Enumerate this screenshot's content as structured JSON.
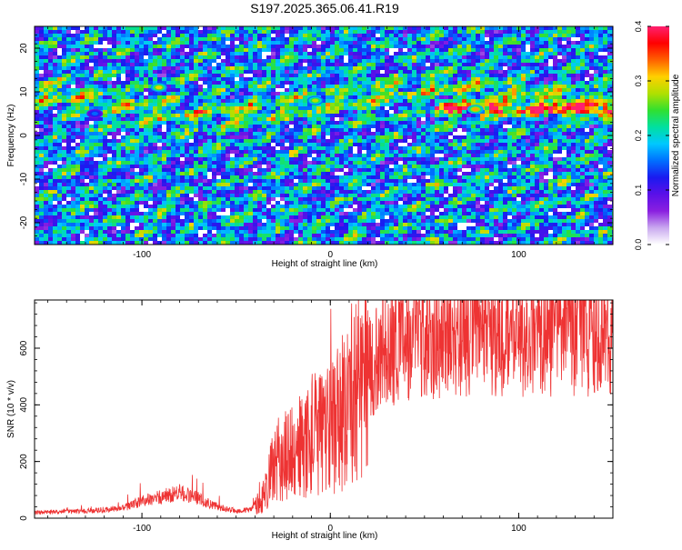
{
  "title": "S197.2025.365.06.41.R19",
  "chart_data": [
    {
      "type": "heatmap",
      "name": "spectrogram",
      "xlabel": "Height of straight line (km)",
      "ylabel": "Frequency (Hz)",
      "xlim": [
        -157,
        150
      ],
      "ylim": [
        -25,
        25
      ],
      "xticks": [
        -100,
        0,
        100
      ],
      "xtick_labels": [
        "-100",
        "0",
        "100"
      ],
      "yticks": [
        -20,
        -10,
        0,
        10,
        20
      ],
      "ytick_labels": [
        "-20",
        "-10",
        "0",
        "10",
        "20"
      ],
      "colorbar": {
        "label": "Normalized spectral amplitude",
        "range": [
          0,
          0.4
        ],
        "ticks": [
          0,
          0.1,
          0.2,
          0.3,
          0.4
        ],
        "tick_labels": [
          "0.0",
          "0.1",
          "0.2",
          "0.3",
          "0.4"
        ],
        "colors": [
          "#ffffff",
          "#c9a8ef",
          "#8a1fe0",
          "#5a10e8",
          "#1a1af0",
          "#0070ff",
          "#00c8ff",
          "#00e0a0",
          "#30e030",
          "#b0e000",
          "#ffd000",
          "#ff6000",
          "#ff0000",
          "#ff2070"
        ]
      },
      "features": [
        {
          "label": "strong band",
          "x_range": [
            55,
            150
          ],
          "frequency": 6
        },
        {
          "label": "hot spot",
          "x": -91,
          "frequency": 11,
          "value": 0.3
        },
        {
          "label": "hot spot",
          "x": -8,
          "frequency": 8,
          "value": 0.28
        },
        {
          "label": "hot spot",
          "x": 77,
          "frequency": 6,
          "value": 0.32
        },
        {
          "label": "hot spot",
          "x": -125,
          "frequency": 5,
          "value": 0.15
        }
      ]
    },
    {
      "type": "line",
      "name": "snr",
      "xlabel": "Height of straight line (km)",
      "ylabel": "SNR (10 * v/v)",
      "xlim": [
        -157,
        150
      ],
      "ylim": [
        0,
        770
      ],
      "xticks": [
        -100,
        0,
        100
      ],
      "xtick_labels": [
        "-100",
        "0",
        "100"
      ],
      "yticks": [
        0,
        200,
        400,
        600
      ],
      "ytick_labels": [
        "0",
        "200",
        "400",
        "600"
      ],
      "color": "#ee3333",
      "baseline": [
        [
          -157,
          20
        ],
        [
          -130,
          25
        ],
        [
          -110,
          35
        ],
        [
          -100,
          60
        ],
        [
          -90,
          75
        ],
        [
          -80,
          90
        ],
        [
          -70,
          70
        ],
        [
          -60,
          40
        ],
        [
          -50,
          25
        ],
        [
          -42,
          30
        ],
        [
          -36,
          70
        ],
        [
          -32,
          150
        ],
        [
          -27,
          210
        ],
        [
          -20,
          230
        ],
        [
          -15,
          260
        ],
        [
          -10,
          290
        ],
        [
          -5,
          310
        ],
        [
          0,
          330
        ],
        [
          5,
          360
        ],
        [
          10,
          420
        ],
        [
          15,
          470
        ],
        [
          20,
          520
        ],
        [
          25,
          570
        ],
        [
          30,
          600
        ],
        [
          40,
          630
        ],
        [
          50,
          640
        ],
        [
          70,
          650
        ],
        [
          100,
          650
        ],
        [
          130,
          655
        ],
        [
          150,
          660
        ]
      ]
    }
  ]
}
